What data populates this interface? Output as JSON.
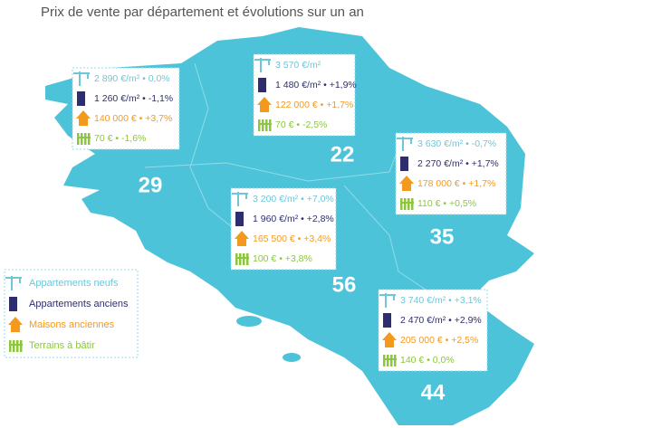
{
  "title": "Prix de vente par département et évolutions sur un an",
  "departments": [
    {
      "code": "29",
      "lines": [
        "2 890 €/m² • 0,0%",
        "1 260 €/m² • -1,1%",
        "140 000 € • +3,7%",
        "70 € • -1,6%"
      ]
    },
    {
      "code": "22",
      "lines": [
        "3 570 €/m²",
        "1 480 €/m² • +1,9%",
        "122 000 € • +1,7%",
        "70 € • -2,5%"
      ]
    },
    {
      "code": "35",
      "lines": [
        "3 630 €/m² • -0,7%",
        "2 270 €/m² • +1,7%",
        "178 000 € • +1,7%",
        "110 € • +0,5%"
      ]
    },
    {
      "code": "56",
      "lines": [
        "3 200 €/m² • +7,0%",
        "1 960 €/m² • +2,8%",
        "165 500 € • +3,4%",
        "100 € • +3,8%"
      ]
    },
    {
      "code": "44",
      "lines": [
        "3 740 €/m² • +3,1%",
        "2 470 €/m² • +2,9%",
        "205 000 € • +2,5%",
        "140 € • 0,0%"
      ]
    }
  ],
  "legend": [
    "Appartements neufs",
    "Appartements anciens",
    "Maisons anciennes",
    "Terrains à bâtir"
  ]
}
